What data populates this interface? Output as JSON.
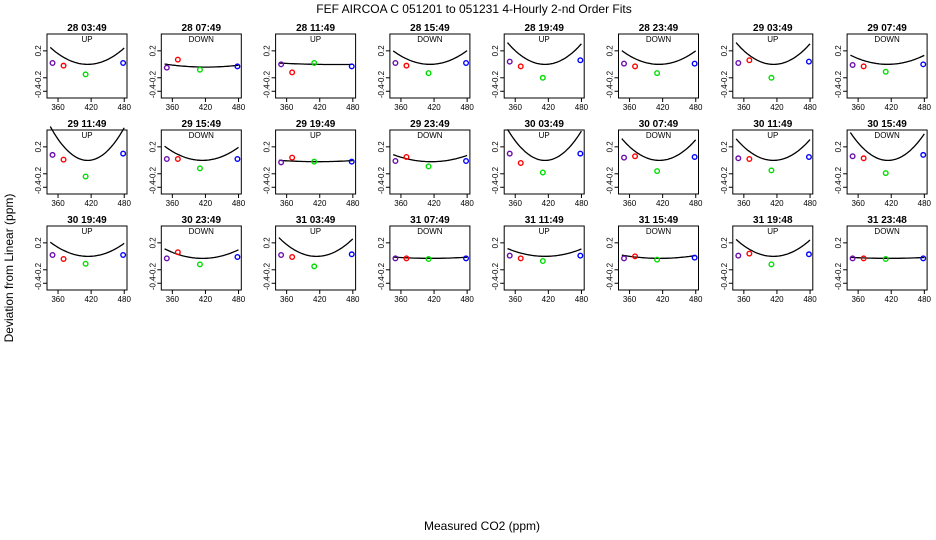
{
  "chart_data": {
    "type": "scatter",
    "title": "FEF   AIRCOA C   051201 to 051231   4-Hourly 2-nd Order Fits",
    "xlabel": "Measured CO2 (ppm)",
    "ylabel": "Deviation from Linear (ppm)",
    "xlim": [
      340,
      485
    ],
    "ylim": [
      -0.5,
      0.45
    ],
    "xticks": [
      360,
      420,
      480
    ],
    "yticks": [
      0.2,
      -0.2,
      -0.4
    ],
    "xtick_labels": [
      "360",
      "420",
      "480"
    ],
    "ytick_labels": [
      "0.2",
      "-0.2",
      "-0.4"
    ],
    "marker_colors": {
      "p1": "#6a0dad",
      "p2": "#ff0000",
      "p3": "#00dd00",
      "p4": "#0000ff",
      "curve": "#000000"
    },
    "panels": [
      {
        "title": "28 03:49",
        "dir": "UP",
        "points": [
          [
            350,
            0.02
          ],
          [
            370,
            -0.02
          ],
          [
            410,
            -0.15
          ],
          [
            478,
            0.02
          ]
        ],
        "coef": [
          0.0,
          -0.0004,
          5.5e-05
        ]
      },
      {
        "title": "28 07:49",
        "dir": "DOWN",
        "points": [
          [
            350,
            -0.05
          ],
          [
            370,
            0.07
          ],
          [
            410,
            -0.08
          ],
          [
            478,
            -0.03
          ]
        ],
        "coef": [
          -0.04,
          -0.00018,
          8e-06
        ]
      },
      {
        "title": "28 11:49",
        "dir": "UP",
        "points": [
          [
            350,
            0.0
          ],
          [
            370,
            -0.12
          ],
          [
            410,
            0.02
          ],
          [
            478,
            -0.03
          ]
        ],
        "coef": [
          0.0,
          -0.00016,
          2e-06
        ]
      },
      {
        "title": "28 15:49",
        "dir": "DOWN",
        "points": [
          [
            350,
            0.02
          ],
          [
            370,
            -0.02
          ],
          [
            410,
            -0.13
          ],
          [
            478,
            0.02
          ]
        ],
        "coef": [
          0.0,
          -0.00024,
          4.5e-05
        ]
      },
      {
        "title": "28 19:49",
        "dir": "UP",
        "points": [
          [
            350,
            0.04
          ],
          [
            370,
            -0.03
          ],
          [
            410,
            -0.2
          ],
          [
            478,
            0.06
          ]
        ],
        "coef": [
          0.0,
          -0.00055,
          7e-05
        ]
      },
      {
        "title": "28 23:49",
        "dir": "DOWN",
        "points": [
          [
            350,
            0.01
          ],
          [
            370,
            -0.03
          ],
          [
            410,
            -0.13
          ],
          [
            478,
            0.01
          ]
        ],
        "coef": [
          0.0,
          -0.0003,
          4.5e-05
        ]
      },
      {
        "title": "29 03:49",
        "dir": "UP",
        "points": [
          [
            350,
            0.02
          ],
          [
            370,
            0.06
          ],
          [
            410,
            -0.2
          ],
          [
            478,
            0.04
          ]
        ],
        "coef": [
          0.0,
          -0.00055,
          7e-05
        ]
      },
      {
        "title": "29 07:49",
        "dir": "DOWN",
        "points": [
          [
            350,
            -0.01
          ],
          [
            370,
            -0.03
          ],
          [
            410,
            -0.11
          ],
          [
            478,
            0.0
          ]
        ],
        "coef": [
          0.0,
          -0.0002,
          3e-05
        ]
      },
      {
        "title": "29 11:49",
        "dir": "UP",
        "points": [
          [
            350,
            0.08
          ],
          [
            370,
            0.01
          ],
          [
            410,
            -0.24
          ],
          [
            478,
            0.1
          ]
        ],
        "coef": [
          0.0,
          -0.0008,
          0.00011
        ]
      },
      {
        "title": "29 15:49",
        "dir": "DOWN",
        "points": [
          [
            350,
            0.02
          ],
          [
            370,
            0.02
          ],
          [
            410,
            -0.12
          ],
          [
            478,
            0.02
          ]
        ],
        "coef": [
          0.0,
          -0.0004,
          4.5e-05
        ]
      },
      {
        "title": "29 19:49",
        "dir": "UP",
        "points": [
          [
            350,
            -0.03
          ],
          [
            370,
            0.04
          ],
          [
            410,
            -0.02
          ],
          [
            478,
            -0.02
          ]
        ],
        "coef": [
          -0.02,
          -5e-05,
          4e-06
        ]
      },
      {
        "title": "29 23:49",
        "dir": "DOWN",
        "points": [
          [
            350,
            -0.01
          ],
          [
            370,
            0.05
          ],
          [
            410,
            -0.09
          ],
          [
            478,
            -0.01
          ]
        ],
        "coef": [
          -0.02,
          -0.00022,
          2.2e-05
        ]
      },
      {
        "title": "30 03:49",
        "dir": "UP",
        "points": [
          [
            350,
            0.1
          ],
          [
            370,
            -0.04
          ],
          [
            410,
            -0.18
          ],
          [
            478,
            0.1
          ]
        ],
        "coef": [
          0.0,
          -0.0008,
          0.0001
        ]
      },
      {
        "title": "30 07:49",
        "dir": "DOWN",
        "points": [
          [
            350,
            0.04
          ],
          [
            370,
            0.06
          ],
          [
            410,
            -0.16
          ],
          [
            478,
            0.05
          ]
        ],
        "coef": [
          0.0,
          -0.00055,
          7e-05
        ]
      },
      {
        "title": "30 11:49",
        "dir": "UP",
        "points": [
          [
            350,
            0.03
          ],
          [
            370,
            0.02
          ],
          [
            410,
            -0.15
          ],
          [
            478,
            0.05
          ]
        ],
        "coef": [
          0.0,
          -0.0005,
          7e-05
        ]
      },
      {
        "title": "30 15:49",
        "dir": "DOWN",
        "points": [
          [
            350,
            0.06
          ],
          [
            370,
            0.03
          ],
          [
            410,
            -0.19
          ],
          [
            478,
            0.08
          ]
        ],
        "coef": [
          0.0,
          -0.0007,
          9e-05
        ]
      },
      {
        "title": "30 19:49",
        "dir": "UP",
        "points": [
          [
            350,
            0.02
          ],
          [
            370,
            -0.04
          ],
          [
            410,
            -0.11
          ],
          [
            478,
            0.02
          ]
        ],
        "coef": [
          0.0,
          -0.0004,
          4.5e-05
        ]
      },
      {
        "title": "30 23:49",
        "dir": "DOWN",
        "points": [
          [
            350,
            -0.03
          ],
          [
            370,
            0.06
          ],
          [
            410,
            -0.12
          ],
          [
            478,
            -0.01
          ]
        ],
        "coef": [
          -0.03,
          -0.00028,
          3e-05
        ]
      },
      {
        "title": "31 03:49",
        "dir": "UP",
        "points": [
          [
            350,
            0.02
          ],
          [
            370,
            -0.01
          ],
          [
            410,
            -0.15
          ],
          [
            478,
            0.03
          ]
        ],
        "coef": [
          0.0,
          -0.0005,
          6e-05
        ]
      },
      {
        "title": "31 07:49",
        "dir": "DOWN",
        "points": [
          [
            350,
            -0.03
          ],
          [
            370,
            -0.03
          ],
          [
            410,
            -0.04
          ],
          [
            478,
            -0.03
          ]
        ],
        "coef": [
          -0.03,
          -4e-05,
          4e-06
        ]
      },
      {
        "title": "31 11:49",
        "dir": "UP",
        "points": [
          [
            350,
            0.01
          ],
          [
            370,
            -0.03
          ],
          [
            410,
            -0.07
          ],
          [
            478,
            0.01
          ]
        ],
        "coef": [
          0.0,
          -0.0002,
          2.5e-05
        ]
      },
      {
        "title": "31 15:49",
        "dir": "DOWN",
        "points": [
          [
            350,
            -0.03
          ],
          [
            370,
            0.0
          ],
          [
            410,
            -0.05
          ],
          [
            478,
            -0.02
          ]
        ],
        "coef": [
          -0.03,
          -0.0001,
          1e-05
        ]
      },
      {
        "title": "31 19:48",
        "dir": "UP",
        "points": [
          [
            350,
            0.01
          ],
          [
            370,
            0.04
          ],
          [
            410,
            -0.12
          ],
          [
            478,
            0.03
          ]
        ],
        "coef": [
          0.0,
          -0.0004,
          5.5e-05
        ]
      },
      {
        "title": "31 23:48",
        "dir": "DOWN",
        "points": [
          [
            350,
            -0.03
          ],
          [
            370,
            -0.03
          ],
          [
            410,
            -0.04
          ],
          [
            478,
            -0.03
          ]
        ],
        "coef": [
          -0.03,
          -3e-05,
          3e-06
        ]
      }
    ]
  }
}
